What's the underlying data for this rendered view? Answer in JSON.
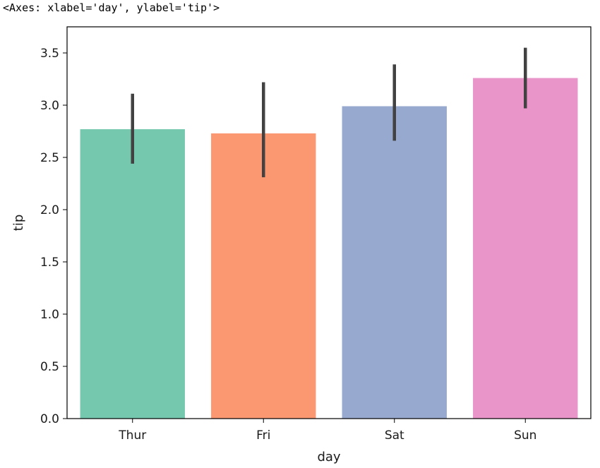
{
  "output": {
    "repr_text": "<Axes: xlabel='day', ylabel='tip'>"
  },
  "chart_data": {
    "type": "bar",
    "categories": [
      "Thur",
      "Fri",
      "Sat",
      "Sun"
    ],
    "values": [
      2.77,
      2.73,
      2.99,
      3.26
    ],
    "error_bars": [
      [
        2.44,
        3.11
      ],
      [
        2.31,
        3.22
      ],
      [
        2.66,
        3.39
      ],
      [
        2.97,
        3.55
      ]
    ],
    "colors": [
      "#66c2a5",
      "#fc8d62",
      "#8da0cb",
      "#e78ac3"
    ],
    "bar_alpha": 0.9,
    "error_bar_color": "#424242",
    "xlabel": "day",
    "ylabel": "tip",
    "ylim": [
      0,
      3.75
    ],
    "yticks": [
      0.0,
      0.5,
      1.0,
      1.5,
      2.0,
      2.5,
      3.0,
      3.5
    ],
    "ytick_labels": [
      "0.0",
      "0.5",
      "1.0",
      "1.5",
      "2.0",
      "2.5",
      "3.0",
      "3.5"
    ],
    "grid": false,
    "legend": "none"
  }
}
